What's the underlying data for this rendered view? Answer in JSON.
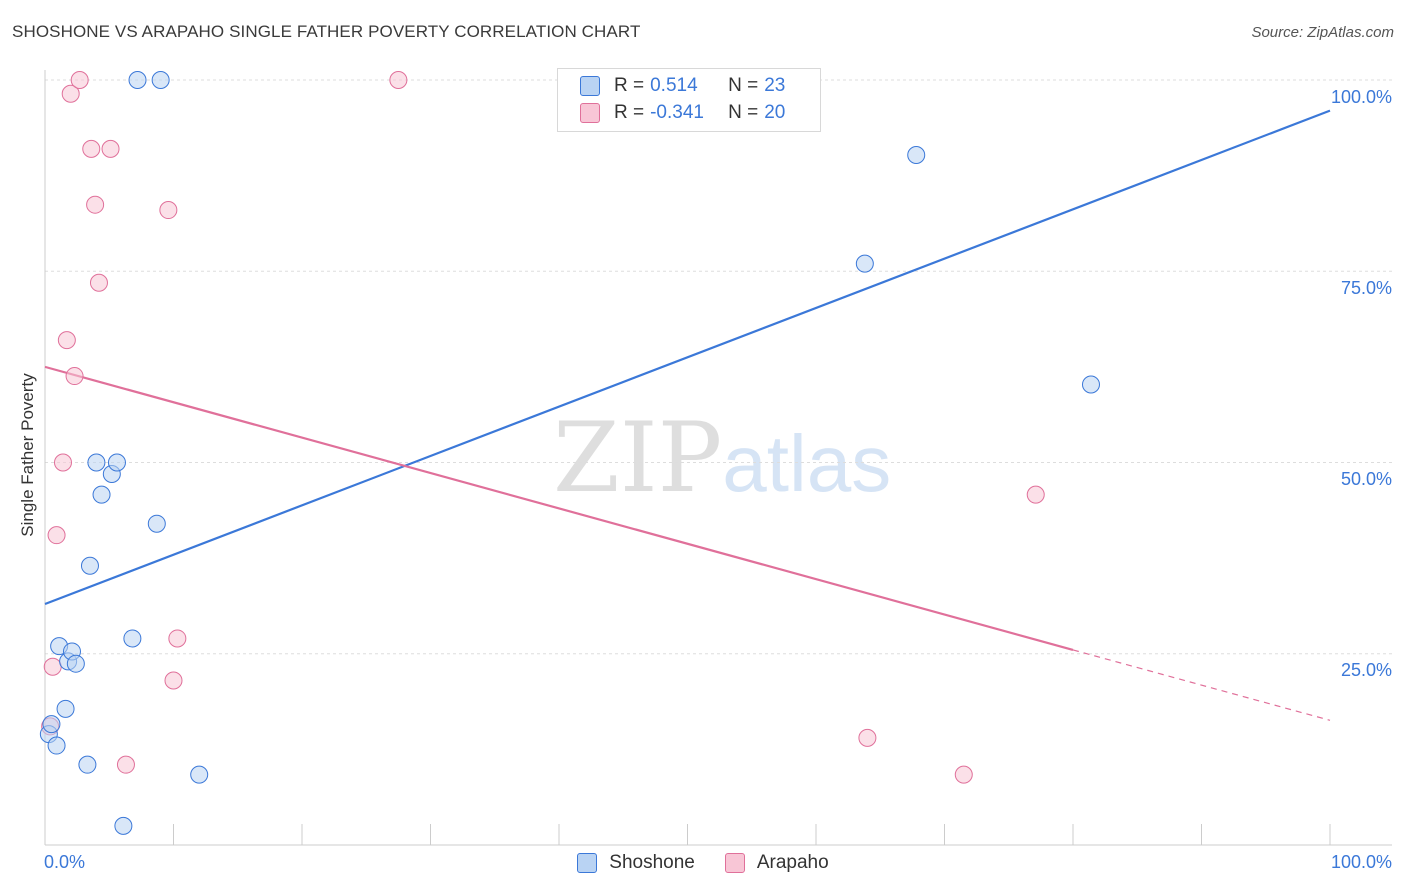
{
  "title": "SHOSHONE VS ARAPAHO SINGLE FATHER POVERTY CORRELATION CHART",
  "source": "Source: ZipAtlas.com",
  "watermark": {
    "zip": "ZIP",
    "atlas": "atlas"
  },
  "legend": {
    "rows": [
      {
        "series": "Shoshone",
        "r_label": "R =",
        "r_value": "0.514",
        "n_label": "N =",
        "n_value": "23"
      },
      {
        "series": "Arapaho",
        "r_label": "R =",
        "r_value": "-0.341",
        "n_label": "N =",
        "n_value": "20"
      }
    ]
  },
  "chart_data": {
    "type": "scatter",
    "title": "SHOSHONE VS ARAPAHO SINGLE FATHER POVERTY CORRELATION CHART",
    "xlabel": "",
    "ylabel": "Single Father Poverty",
    "xlim": [
      0,
      100
    ],
    "ylim": [
      0,
      102
    ],
    "x_tick_labels": [
      "0.0%",
      "100.0%"
    ],
    "y_tick_values": [
      25,
      50,
      75,
      100
    ],
    "y_tick_labels": [
      "25.0%",
      "50.0%",
      "75.0%",
      "100.0%"
    ],
    "grid": true,
    "colors": {
      "Shoshone": "#3b78d8",
      "Arapaho": "#e0709a",
      "Shoshone_fill": "#b9d3f3",
      "Arapaho_fill": "#f8c6d6"
    },
    "series": [
      {
        "name": "Shoshone",
        "points": [
          [
            0.3,
            14.5
          ],
          [
            0.5,
            15.8
          ],
          [
            0.9,
            13.0
          ],
          [
            1.1,
            26.0
          ],
          [
            1.6,
            17.8
          ],
          [
            1.8,
            24.0
          ],
          [
            2.1,
            25.3
          ],
          [
            2.4,
            23.7
          ],
          [
            3.3,
            10.5
          ],
          [
            3.5,
            36.5
          ],
          [
            4.0,
            50.0
          ],
          [
            4.4,
            45.8
          ],
          [
            5.2,
            48.5
          ],
          [
            5.6,
            50.0
          ],
          [
            6.1,
            2.5
          ],
          [
            6.8,
            27.0
          ],
          [
            7.2,
            100.0
          ],
          [
            8.7,
            42.0
          ],
          [
            9.0,
            100.0
          ],
          [
            12.0,
            9.2
          ],
          [
            63.8,
            76.0
          ],
          [
            67.8,
            90.2
          ],
          [
            81.4,
            60.2
          ]
        ],
        "trendline": {
          "x": [
            0,
            100
          ],
          "y": [
            31.5,
            96.0
          ],
          "style": "solid"
        }
      },
      {
        "name": "Arapaho",
        "points": [
          [
            0.4,
            15.5
          ],
          [
            0.6,
            23.3
          ],
          [
            0.9,
            40.5
          ],
          [
            1.4,
            50.0
          ],
          [
            1.7,
            66.0
          ],
          [
            2.0,
            98.2
          ],
          [
            2.3,
            61.3
          ],
          [
            2.7,
            100.0
          ],
          [
            3.6,
            91.0
          ],
          [
            3.9,
            83.7
          ],
          [
            4.2,
            73.5
          ],
          [
            5.1,
            91.0
          ],
          [
            6.3,
            10.5
          ],
          [
            9.6,
            83.0
          ],
          [
            10.0,
            21.5
          ],
          [
            10.3,
            27.0
          ],
          [
            27.5,
            100.0
          ],
          [
            64.0,
            14.0
          ],
          [
            77.1,
            45.8
          ],
          [
            71.5,
            9.2
          ]
        ],
        "trendline": {
          "x": [
            0,
            80,
            100
          ],
          "y": [
            62.5,
            25.5,
            16.3
          ],
          "style": "solid-then-dashed",
          "dash_from_x": 80
        }
      }
    ]
  },
  "x_axis": {
    "left_label": "0.0%",
    "right_label": "100.0%"
  }
}
